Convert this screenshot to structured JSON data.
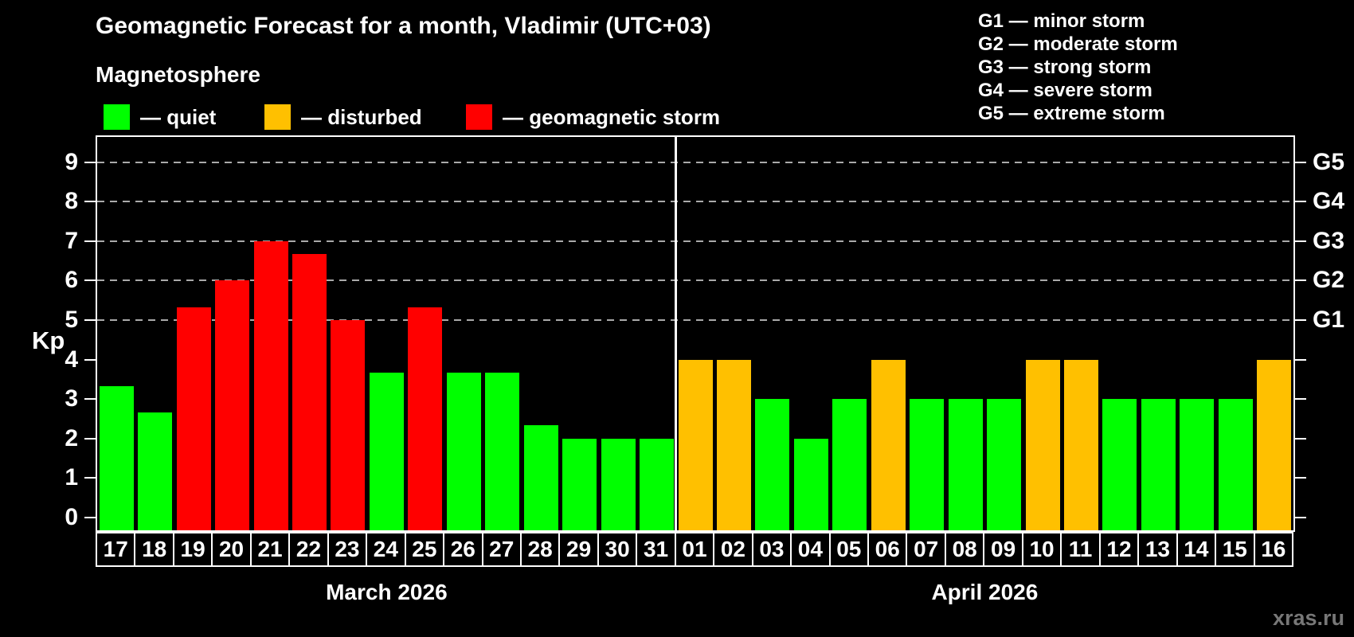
{
  "title": "Geomagnetic Forecast for a month, Vladimir (UTC+03)",
  "subtitle": "Magnetosphere",
  "legend": [
    {
      "key": "quiet",
      "label": "— quiet",
      "color": "#00ff00"
    },
    {
      "key": "disturbed",
      "label": "— disturbed",
      "color": "#ffc000"
    },
    {
      "key": "storm",
      "label": "— geomagnetic storm",
      "color": "#ff0000"
    }
  ],
  "g_legend": [
    "G1 — minor storm",
    "G2 — moderate storm",
    "G3 — strong storm",
    "G4 — severe storm",
    "G5 — extreme storm"
  ],
  "watermark": "xras.ru",
  "chart_data": {
    "type": "bar",
    "ylabel": "Kp",
    "ylim": [
      0,
      9.6
    ],
    "yticks": [
      0,
      1,
      2,
      3,
      4,
      5,
      6,
      7,
      8,
      9
    ],
    "gridline_levels": [
      5,
      6,
      7,
      8,
      9
    ],
    "grid": "dashed, only at storm levels G1–G5",
    "legend_position": "top-left",
    "right_axis": [
      {
        "value": 5,
        "label": "G1"
      },
      {
        "value": 6,
        "label": "G2"
      },
      {
        "value": 7,
        "label": "G3"
      },
      {
        "value": 8,
        "label": "G4"
      },
      {
        "value": 9,
        "label": "G5"
      }
    ],
    "status_colors": {
      "quiet": "#00ff00",
      "disturbed": "#ffc000",
      "storm": "#ff0000"
    },
    "months": [
      {
        "label": "March 2026",
        "days": [
          "17",
          "18",
          "19",
          "20",
          "21",
          "22",
          "23",
          "24",
          "25",
          "26",
          "27",
          "28",
          "29",
          "30",
          "31"
        ],
        "values": [
          3.33,
          2.67,
          5.33,
          6,
          7,
          6.67,
          5,
          3.67,
          5.33,
          3.67,
          3.67,
          2.33,
          2,
          2,
          2
        ],
        "status": [
          "quiet",
          "quiet",
          "storm",
          "storm",
          "storm",
          "storm",
          "storm",
          "quiet",
          "storm",
          "quiet",
          "quiet",
          "quiet",
          "quiet",
          "quiet",
          "quiet"
        ]
      },
      {
        "label": "April 2026",
        "days": [
          "01",
          "02",
          "03",
          "04",
          "05",
          "06",
          "07",
          "08",
          "09",
          "10",
          "11",
          "12",
          "13",
          "14",
          "15",
          "16"
        ],
        "values": [
          4,
          4,
          3,
          2,
          3,
          4,
          3,
          3,
          3,
          4,
          4,
          3,
          3,
          3,
          3,
          4
        ],
        "status": [
          "disturbed",
          "disturbed",
          "quiet",
          "quiet",
          "quiet",
          "disturbed",
          "quiet",
          "quiet",
          "quiet",
          "disturbed",
          "disturbed",
          "quiet",
          "quiet",
          "quiet",
          "quiet",
          "disturbed"
        ]
      }
    ]
  }
}
